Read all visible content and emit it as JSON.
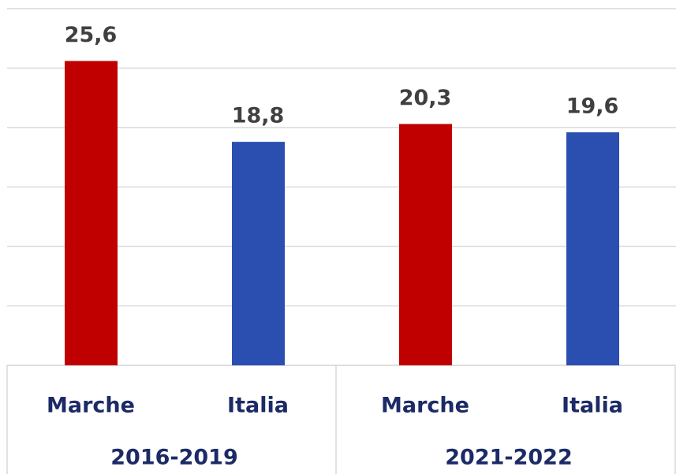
{
  "chart_data": {
    "type": "bar",
    "groups": [
      {
        "name": "2016-2019",
        "categories": [
          "Marche",
          "Italia"
        ],
        "values": [
          25.6,
          18.8
        ],
        "value_labels": [
          "25,6",
          "18,8"
        ]
      },
      {
        "name": "2021-2022",
        "categories": [
          "Marche",
          "Italia"
        ],
        "values": [
          20.3,
          19.6
        ],
        "value_labels": [
          "20,3",
          "19,6"
        ]
      }
    ],
    "colors": [
      "#c00000",
      "#2a4fb0"
    ],
    "ylim": [
      0,
      30
    ],
    "yticks": [
      0,
      5,
      10,
      15,
      20,
      25,
      30
    ],
    "grid": true
  }
}
